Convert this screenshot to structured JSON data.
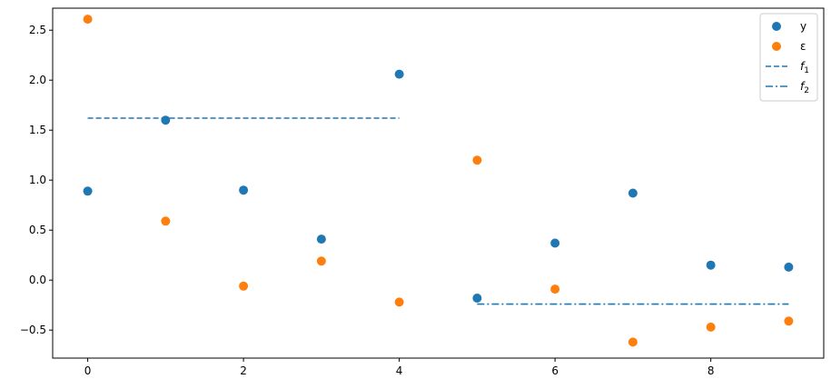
{
  "chart_data": {
    "type": "scatter",
    "title": "",
    "xlabel": "",
    "ylabel": "",
    "xlim": [
      -0.45,
      9.45
    ],
    "ylim": [
      -0.78,
      2.72
    ],
    "x_ticks": [
      0,
      2,
      4,
      6,
      8
    ],
    "y_ticks": [
      -0.5,
      0.0,
      0.5,
      1.0,
      1.5,
      2.0,
      2.5
    ],
    "x_tick_labels": [
      "0",
      "2",
      "4",
      "6",
      "8"
    ],
    "y_tick_labels": [
      "−0.5",
      "0.0",
      "0.5",
      "1.0",
      "1.5",
      "2.0",
      "2.5"
    ],
    "grid": false,
    "legend_position": "top-right",
    "series": [
      {
        "name": "y",
        "kind": "scatter",
        "color": "#1f77b4",
        "x": [
          0,
          1,
          2,
          3,
          4,
          5,
          6,
          7,
          8,
          9
        ],
        "y": [
          0.89,
          1.6,
          0.9,
          0.41,
          2.06,
          -0.18,
          0.37,
          0.87,
          0.15,
          0.13
        ]
      },
      {
        "name": "ε",
        "kind": "scatter",
        "color": "#ff7f0e",
        "x": [
          0,
          1,
          2,
          3,
          4,
          5,
          6,
          7,
          8,
          9
        ],
        "y": [
          2.61,
          0.59,
          -0.06,
          0.19,
          -0.22,
          1.2,
          -0.09,
          -0.62,
          -0.47,
          -0.41
        ]
      },
      {
        "name": "f",
        "name_sub": "1",
        "kind": "line",
        "dash": "dashed",
        "color": "#1f77b4",
        "x": [
          0,
          4
        ],
        "y": [
          1.62,
          1.62
        ]
      },
      {
        "name": "f",
        "name_sub": "2",
        "kind": "line",
        "dash": "dashdot",
        "color": "#1f77b4",
        "x": [
          5,
          9
        ],
        "y": [
          -0.24,
          -0.24
        ]
      }
    ]
  }
}
